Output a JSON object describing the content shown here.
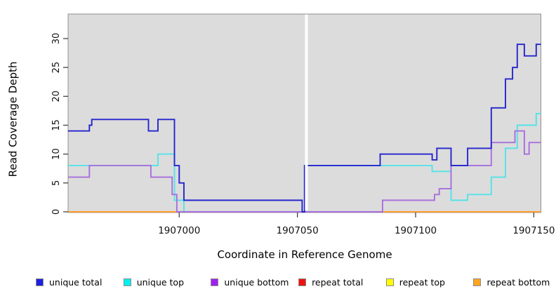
{
  "chart_data": {
    "type": "line",
    "style": "step",
    "title": "",
    "xlabel": "Coordinate in Reference Genome",
    "ylabel": "Read Coverage Depth",
    "xlim": [
      1906953,
      1907153
    ],
    "ylim": [
      0,
      34
    ],
    "x_ticks": [
      1907000,
      1907050,
      1907100,
      1907150
    ],
    "y_ticks": [
      0,
      5,
      10,
      15,
      20,
      25,
      30
    ],
    "grid": false,
    "legend_position": "bottom",
    "plot_background": "#DCDCDC",
    "mask_region_x": [
      1907053.2,
      1907054.4
    ],
    "series": [
      {
        "id": "repeat-top",
        "label": "repeat top",
        "line_color": "#FFE800",
        "paths": [
          [
            [
              1906953,
              0
            ],
            [
              1907153,
              0
            ]
          ]
        ]
      },
      {
        "id": "repeat-total",
        "label": "repeat total",
        "line_color": "#DD6388",
        "paths": [
          [
            [
              1906953,
              0
            ],
            [
              1907153,
              0
            ]
          ]
        ]
      },
      {
        "id": "repeat-bottom",
        "label": "repeat bottom",
        "line_color": "#FF9C2C",
        "paths": [
          [
            [
              1906953,
              0
            ],
            [
              1907000,
              0
            ]
          ],
          [
            [
              1907086,
              0
            ],
            [
              1907153,
              0
            ]
          ]
        ]
      },
      {
        "id": "unique-top",
        "label": "unique top",
        "line_color": "#55E2E8",
        "paths": [
          [
            [
              1906953,
              8
            ],
            [
              1906991,
              10
            ],
            [
              1906998,
              2
            ],
            [
              1907002,
              0
            ],
            [
              1907053,
              8
            ],
            [
              1907107,
              7
            ],
            [
              1907115,
              2
            ],
            [
              1907122,
              3
            ],
            [
              1907132,
              6
            ],
            [
              1907138,
              11
            ],
            [
              1907143,
              15
            ],
            [
              1907151,
              17
            ],
            [
              1907153,
              17
            ]
          ]
        ]
      },
      {
        "id": "unique-bottom",
        "label": "unique bottom",
        "line_color": "#A76FDD",
        "paths": [
          [
            [
              1906953,
              6
            ],
            [
              1906962,
              8
            ],
            [
              1906988,
              6
            ],
            [
              1906997,
              3
            ],
            [
              1906999,
              0
            ],
            [
              1907086,
              2
            ],
            [
              1907108,
              3
            ],
            [
              1907110,
              4
            ],
            [
              1907115,
              8
            ],
            [
              1907132,
              12
            ],
            [
              1907142,
              14
            ],
            [
              1907146,
              10
            ],
            [
              1907148,
              12
            ],
            [
              1907153,
              12
            ]
          ]
        ]
      },
      {
        "id": "unique-total",
        "label": "unique total",
        "line_color": "#2525CD",
        "paths": [
          [
            [
              1906953,
              14
            ],
            [
              1906962,
              15
            ],
            [
              1906963,
              16
            ],
            [
              1906987,
              14
            ],
            [
              1906991,
              16
            ],
            [
              1906998,
              8
            ],
            [
              1907000,
              5
            ],
            [
              1907002,
              2
            ],
            [
              1907052,
              0
            ],
            [
              1907053,
              8
            ],
            [
              1907085,
              10
            ],
            [
              1907107,
              9
            ],
            [
              1907109,
              11
            ],
            [
              1907115,
              8
            ],
            [
              1907122,
              11
            ],
            [
              1907132,
              18
            ],
            [
              1907138,
              23
            ],
            [
              1907141,
              25
            ],
            [
              1907143,
              29
            ],
            [
              1907146,
              27
            ],
            [
              1907151,
              29
            ],
            [
              1907153,
              29
            ]
          ]
        ]
      }
    ]
  },
  "legend": {
    "items": [
      {
        "label": "unique total",
        "color": "#1F1FE0"
      },
      {
        "label": "unique top",
        "color": "#00F0F0"
      },
      {
        "label": "unique bottom",
        "color": "#A020F0"
      },
      {
        "label": "repeat total",
        "color": "#EE1111"
      },
      {
        "label": "repeat top",
        "color": "#FFFF00"
      },
      {
        "label": "repeat bottom",
        "color": "#FFA51E"
      }
    ]
  }
}
